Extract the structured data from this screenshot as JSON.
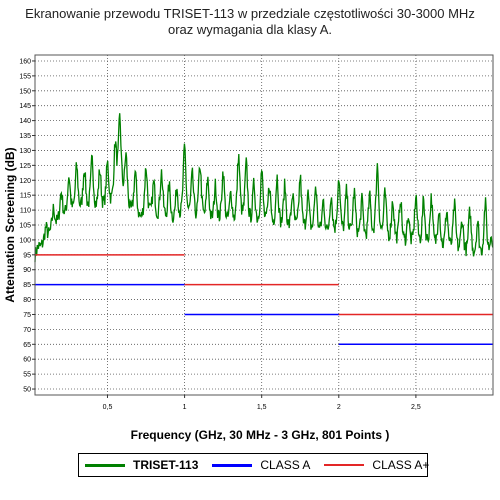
{
  "title_line1": "Ekranowanie przewodu TRISET-113 w przedziale częstotliwości 30-3000 MHz",
  "title_line2": "oraz wymagania dla klasy A.",
  "chart_data": {
    "type": "line",
    "xlabel": "Frequency (GHz, 30 MHz - 3 GHz, 801 Points )",
    "ylabel": "Attenuation Screening (dB)",
    "xlim": [
      0.03,
      3.0
    ],
    "ylim": [
      48,
      162
    ],
    "x_ticks": [
      0.5,
      1,
      1.5,
      2,
      2.5
    ],
    "x_tick_labels": [
      "0,5",
      "1",
      "1,5",
      "2",
      "2,5"
    ],
    "y_ticks": [
      50,
      55,
      60,
      65,
      70,
      75,
      80,
      85,
      90,
      95,
      100,
      105,
      110,
      115,
      120,
      125,
      130,
      135,
      140,
      145,
      150,
      155,
      160
    ],
    "grid": true,
    "legend_position": "bottom",
    "series": [
      {
        "name": "TRISET-113",
        "color": "#008000",
        "style": "noisy-resonant",
        "baseline": [
          [
            0.03,
            94
          ],
          [
            0.2,
            103
          ],
          [
            0.5,
            104
          ],
          [
            1.0,
            100
          ],
          [
            1.5,
            98
          ],
          [
            2.0,
            95
          ],
          [
            2.5,
            92
          ],
          [
            3.0,
            88
          ]
        ],
        "peaks": [
          [
            0.05,
            97
          ],
          [
            0.1,
            103
          ],
          [
            0.15,
            109
          ],
          [
            0.2,
            114
          ],
          [
            0.25,
            119
          ],
          [
            0.3,
            122
          ],
          [
            0.35,
            121
          ],
          [
            0.4,
            124
          ],
          [
            0.45,
            120
          ],
          [
            0.5,
            122
          ],
          [
            0.55,
            126
          ],
          [
            0.58,
            135
          ],
          [
            0.62,
            124
          ],
          [
            0.68,
            120
          ],
          [
            0.75,
            122
          ],
          [
            0.8,
            116
          ],
          [
            0.85,
            120
          ],
          [
            0.9,
            115
          ],
          [
            0.95,
            114
          ],
          [
            1.0,
            128
          ],
          [
            1.05,
            118
          ],
          [
            1.1,
            122
          ],
          [
            1.15,
            117
          ],
          [
            1.2,
            115
          ],
          [
            1.25,
            120
          ],
          [
            1.3,
            112
          ],
          [
            1.35,
            125
          ],
          [
            1.4,
            122
          ],
          [
            1.45,
            115
          ],
          [
            1.5,
            120
          ],
          [
            1.55,
            115
          ],
          [
            1.6,
            118
          ],
          [
            1.65,
            115
          ],
          [
            1.7,
            112
          ],
          [
            1.75,
            118
          ],
          [
            1.8,
            112
          ],
          [
            1.85,
            115
          ],
          [
            1.9,
            110
          ],
          [
            1.95,
            112
          ],
          [
            2.0,
            118
          ],
          [
            2.05,
            113
          ],
          [
            2.1,
            113
          ],
          [
            2.15,
            110
          ],
          [
            2.2,
            111
          ],
          [
            2.25,
            122
          ],
          [
            2.3,
            112
          ],
          [
            2.35,
            110
          ],
          [
            2.4,
            111
          ],
          [
            2.45,
            105
          ],
          [
            2.5,
            112
          ],
          [
            2.55,
            110
          ],
          [
            2.6,
            111
          ],
          [
            2.65,
            108
          ],
          [
            2.7,
            107
          ],
          [
            2.75,
            109
          ],
          [
            2.8,
            104
          ],
          [
            2.85,
            107
          ],
          [
            2.9,
            103
          ],
          [
            2.95,
            110
          ],
          [
            2.99,
            100
          ]
        ]
      },
      {
        "name": "CLASS A",
        "color": "#0000ff",
        "segments": [
          [
            0.03,
            1.0,
            85
          ],
          [
            1.0,
            2.0,
            75
          ],
          [
            2.0,
            3.0,
            65
          ]
        ]
      },
      {
        "name": "CLASS  A+",
        "color": "#e32626",
        "segments": [
          [
            0.03,
            1.0,
            95
          ],
          [
            1.0,
            2.0,
            85
          ],
          [
            2.0,
            3.0,
            75
          ]
        ]
      }
    ]
  },
  "legend": {
    "item1": "TRISET-113",
    "item2": "CLASS A",
    "item3": "CLASS  A+"
  }
}
